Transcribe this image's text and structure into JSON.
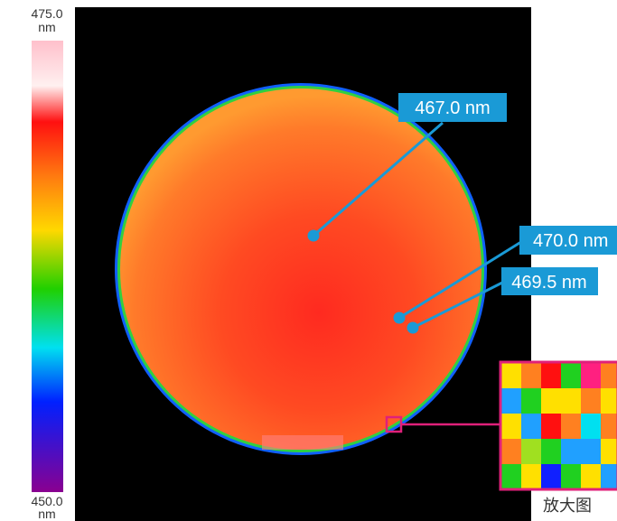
{
  "colorbar": {
    "max": "475.0",
    "max_unit": "nm",
    "min": "450.0",
    "min_unit": "nm"
  },
  "callouts": [
    "467.0 nm",
    "470.0 nm",
    "469.5 nm"
  ],
  "inset_label": "放大图"
}
